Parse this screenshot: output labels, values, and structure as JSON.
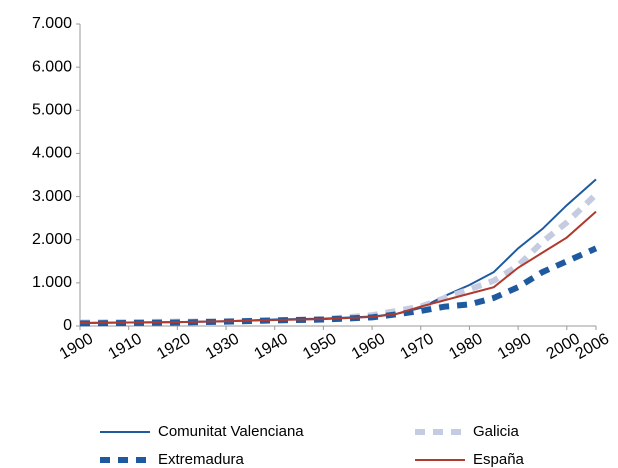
{
  "chart_data": {
    "type": "line",
    "x": [
      1900,
      1910,
      1920,
      1930,
      1940,
      1950,
      1960,
      1965,
      1970,
      1975,
      1980,
      1985,
      1990,
      1995,
      2000,
      2006
    ],
    "series": [
      {
        "name": "Comunitat Valenciana",
        "color": "#1f5aa0",
        "dashed": false,
        "values": [
          70,
          80,
          90,
          110,
          150,
          170,
          220,
          280,
          420,
          700,
          950,
          1250,
          1800,
          2250,
          2800,
          3400
        ]
      },
      {
        "name": "Galicia",
        "color": "#c5cbe0",
        "dashed": true,
        "values": [
          80,
          90,
          100,
          110,
          130,
          160,
          250,
          350,
          450,
          650,
          850,
          1050,
          1400,
          1950,
          2400,
          3050
        ]
      },
      {
        "name": "Extremadura",
        "color": "#1f5aa0",
        "dashed": true,
        "values": [
          60,
          70,
          80,
          100,
          130,
          150,
          200,
          270,
          350,
          450,
          500,
          650,
          900,
          1250,
          1500,
          1800
        ]
      },
      {
        "name": "España",
        "color": "#b03a2e",
        "dashed": false,
        "values": [
          70,
          80,
          90,
          110,
          140,
          160,
          210,
          280,
          450,
          600,
          750,
          900,
          1350,
          1700,
          2050,
          2650
        ]
      }
    ],
    "xlim": [
      1900,
      2006
    ],
    "xticks": [
      1900,
      1910,
      1920,
      1930,
      1940,
      1950,
      1960,
      1970,
      1980,
      1990,
      2000,
      2006
    ],
    "ylim": [
      0,
      7000
    ],
    "yticks": [
      0,
      {
        "value": 1000,
        "label": "1.000"
      },
      {
        "value": 2000,
        "label": "2.000"
      },
      {
        "value": 3000,
        "label": "3.000"
      },
      {
        "value": 4000,
        "label": "4.000"
      },
      {
        "value": 5000,
        "label": "5.000"
      },
      {
        "value": 6000,
        "label": "6.000"
      },
      {
        "value": 7000,
        "label": "7.000"
      }
    ],
    "grid": false
  }
}
